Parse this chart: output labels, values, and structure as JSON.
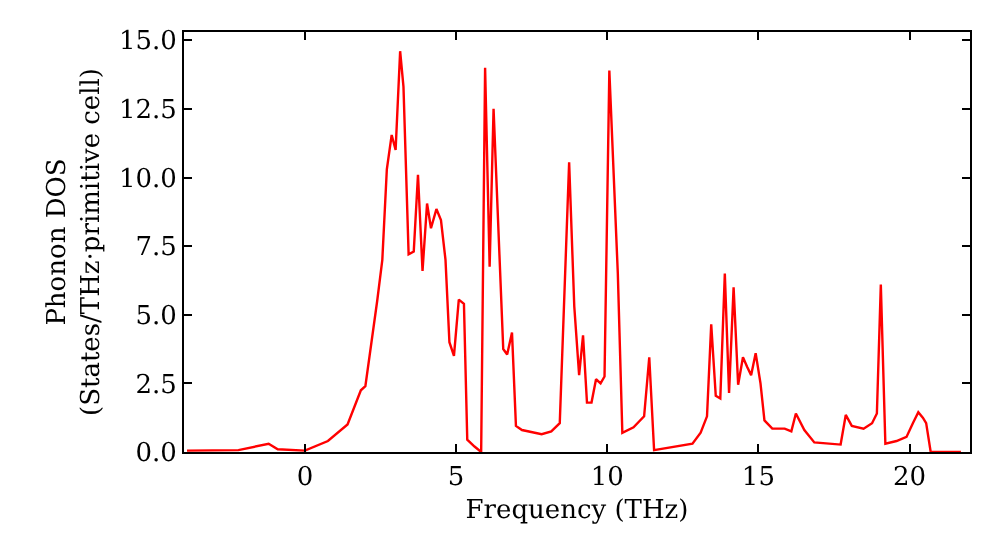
{
  "chart_data": {
    "type": "line",
    "xlabel": "Frequency (THz)",
    "ylabel": "Phonon DOS\n(States/THz·primitive cell)",
    "xlim": [
      -4,
      22
    ],
    "ylim": [
      0,
      15.3
    ],
    "xticks": [
      0,
      5,
      10,
      15,
      20
    ],
    "yticks": [
      {
        "value": 0,
        "label": "0.0"
      },
      {
        "value": 2.5,
        "label": "2.5"
      },
      {
        "value": 5,
        "label": "5.0"
      },
      {
        "value": 7.5,
        "label": "7.5"
      },
      {
        "value": 10,
        "label": "10.0"
      },
      {
        "value": 12.5,
        "label": "12.5"
      },
      {
        "value": 15,
        "label": "15.0"
      }
    ],
    "marker": "none",
    "line_style": "solid",
    "series": [
      {
        "color": "#ff0000",
        "x": [
          -3.9,
          -2.2,
          -1.2,
          -0.9,
          0,
          0.76,
          1.41,
          1.85,
          2.0,
          2.39,
          2.56,
          2.71,
          2.87,
          3.0,
          3.15,
          3.26,
          3.43,
          3.6,
          3.74,
          3.89,
          4.04,
          4.17,
          4.35,
          4.5,
          4.65,
          4.78,
          4.93,
          5.09,
          5.26,
          5.37,
          5.61,
          5.83,
          5.96,
          6.11,
          6.24,
          6.56,
          6.69,
          6.85,
          6.98,
          7.18,
          7.83,
          8.15,
          8.43,
          8.74,
          8.91,
          9.07,
          9.2,
          9.33,
          9.48,
          9.63,
          9.78,
          9.91,
          10.07,
          10.35,
          10.5,
          10.87,
          11.22,
          11.39,
          11.55,
          12.82,
          13.09,
          13.3,
          13.44,
          13.59,
          13.74,
          13.89,
          14.03,
          14.18,
          14.33,
          14.49,
          14.63,
          14.76,
          14.91,
          15.07,
          15.2,
          15.46,
          15.87,
          16.09,
          16.24,
          16.52,
          16.85,
          17.72,
          17.89,
          18.09,
          18.48,
          18.76,
          18.92,
          19.05,
          19.2,
          19.57,
          19.9,
          20.11,
          20.29,
          20.44,
          20.55,
          20.7,
          21.7
        ],
        "values": [
          0.05,
          0.07,
          0.3,
          0.1,
          0.05,
          0.4,
          1.0,
          2.25,
          2.4,
          5.5,
          7.0,
          10.3,
          11.55,
          11.0,
          14.6,
          13.3,
          7.2,
          7.3,
          10.1,
          6.6,
          9.05,
          8.15,
          8.85,
          8.45,
          7.0,
          4.0,
          3.5,
          5.55,
          5.4,
          0.45,
          0.2,
          0.0,
          14.0,
          6.75,
          12.5,
          3.75,
          3.55,
          4.35,
          0.95,
          0.8,
          0.65,
          0.75,
          1.05,
          10.55,
          5.3,
          2.8,
          4.25,
          1.8,
          1.8,
          2.65,
          2.5,
          2.75,
          13.9,
          6.5,
          0.7,
          0.9,
          1.3,
          3.45,
          0.07,
          0.3,
          0.7,
          1.3,
          4.65,
          2.05,
          1.95,
          6.5,
          2.15,
          6.0,
          2.45,
          3.45,
          3.1,
          2.8,
          3.6,
          2.5,
          1.15,
          0.85,
          0.85,
          0.75,
          1.4,
          0.8,
          0.35,
          0.27,
          1.35,
          0.95,
          0.85,
          1.05,
          1.4,
          6.1,
          0.3,
          0.4,
          0.55,
          1.05,
          1.45,
          1.25,
          1.05,
          0.0,
          0.0
        ]
      }
    ]
  }
}
